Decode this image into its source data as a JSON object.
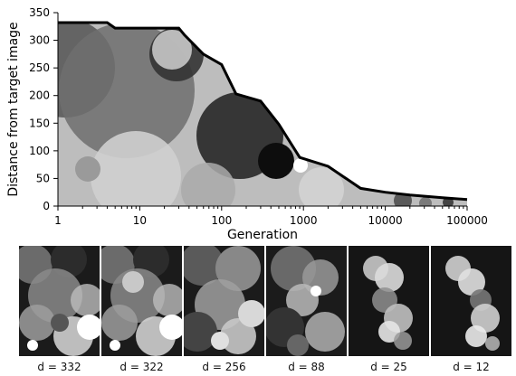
{
  "chart_data": {
    "type": "area",
    "title": "",
    "xlabel": "Generation",
    "ylabel": "Distance from target image",
    "xscale": "log",
    "xlim": [
      1,
      100000
    ],
    "ylim": [
      0,
      350
    ],
    "xticks": [
      1,
      10,
      100,
      1000,
      10000,
      100000
    ],
    "xtick_labels": [
      "1",
      "10",
      "100",
      "1000",
      "10000",
      "100000"
    ],
    "yticks": [
      0,
      50,
      100,
      150,
      200,
      250,
      300,
      350
    ],
    "ytick_labels": [
      "0",
      "50",
      "100",
      "150",
      "200",
      "250",
      "300",
      "350"
    ],
    "grid": false,
    "series": [
      {
        "x": [
          1,
          4,
          5,
          30,
          35,
          60,
          100,
          150,
          300,
          500,
          900,
          2000,
          5000,
          10000,
          20000,
          50000,
          100000
        ],
        "y": [
          332,
          332,
          322,
          322,
          310,
          275,
          256,
          203,
          190,
          148,
          88,
          72,
          32,
          25,
          20,
          15,
          12
        ]
      }
    ]
  },
  "thumbnails": [
    {
      "label": "d = 332"
    },
    {
      "label": "d = 322"
    },
    {
      "label": "d = 256"
    },
    {
      "label": "d = 88"
    },
    {
      "label": "d = 25"
    },
    {
      "label": "d = 12"
    }
  ],
  "colors": {
    "axis": "#000000",
    "curve": "#000000",
    "area_bg": "#bdbdbd",
    "thumb_bg": "#1b1b1b"
  }
}
